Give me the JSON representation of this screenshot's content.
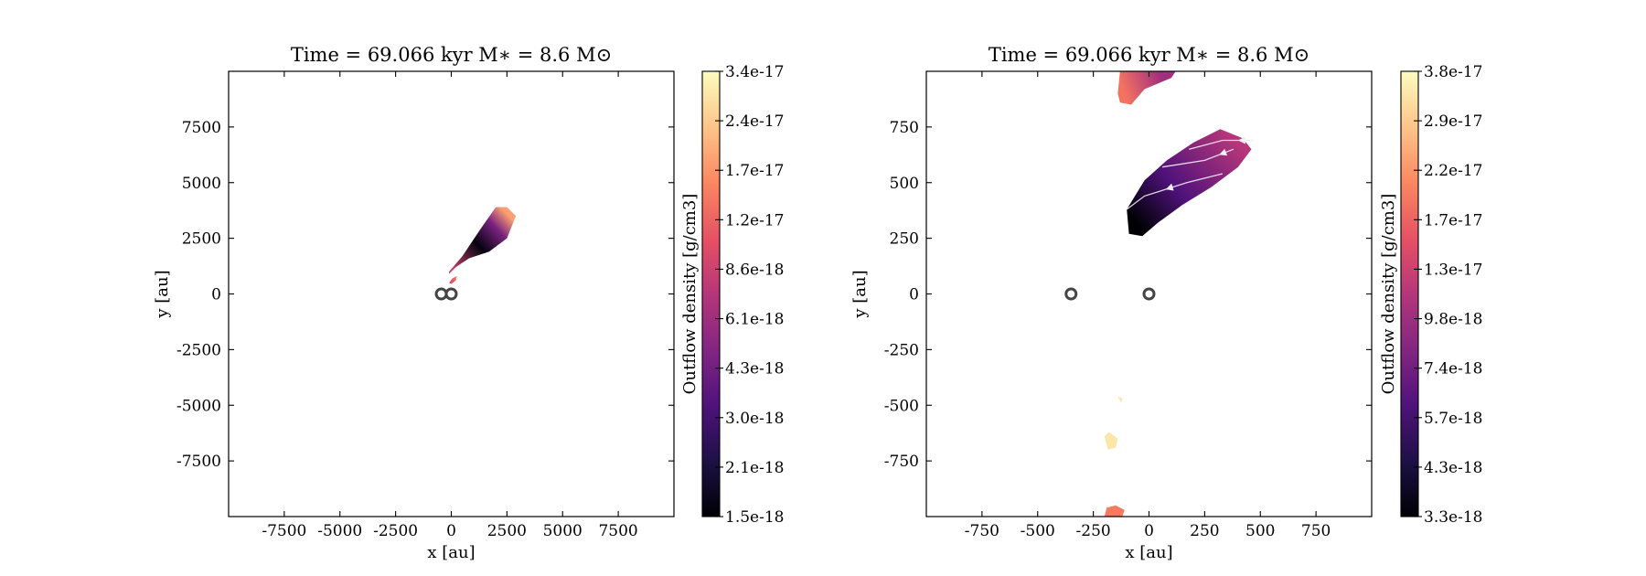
{
  "chart_data": [
    {
      "type": "heatmap",
      "title": "Time = 69.066 kyr    M∗ = 8.6 M⊙",
      "xlabel": "x [au]",
      "ylabel": "y [au]",
      "xlim": [
        -10000,
        10000
      ],
      "ylim": [
        -10000,
        10000
      ],
      "xticks": [
        -7500,
        -5000,
        -2500,
        0,
        2500,
        5000,
        7500
      ],
      "yticks": [
        7500,
        5000,
        2500,
        0,
        -2500,
        -5000,
        -7500
      ],
      "xtick_labels": [
        "-7500",
        "-5000",
        "-2500",
        "0",
        "2500",
        "5000",
        "7500"
      ],
      "ytick_labels": [
        "7500",
        "5000",
        "2500",
        "0",
        "-2500",
        "-5000",
        "-7500"
      ],
      "colorbar": {
        "label": "Outflow density [g/cm3]",
        "ticks": [
          "1.5e-18",
          "2.1e-18",
          "3.0e-18",
          "4.3e-18",
          "6.1e-18",
          "8.6e-18",
          "1.2e-17",
          "1.7e-17",
          "2.4e-17",
          "3.4e-17"
        ]
      },
      "sinks": [
        {
          "x": -450,
          "y": 0
        },
        {
          "x": 0,
          "y": 0
        }
      ],
      "regions": [
        {
          "name": "main-outflow-lobe",
          "outline": [
            [
              -100,
              1000
            ],
            [
              500,
              1700
            ],
            [
              1300,
              2900
            ],
            [
              2000,
              3900
            ],
            [
              2500,
              3900
            ],
            [
              2900,
              3500
            ],
            [
              2500,
              2500
            ],
            [
              1700,
              1900
            ],
            [
              800,
              1600
            ],
            [
              200,
              1200
            ],
            [
              -100,
              900
            ]
          ],
          "fill_stops": [
            {
              "x": 0,
              "y": 1100,
              "level": 0.55
            },
            {
              "x": 1200,
              "y": 2200,
              "level": 0.02
            },
            {
              "x": 1800,
              "y": 3200,
              "level": 0.35
            },
            {
              "x": 2600,
              "y": 3500,
              "level": 0.8
            }
          ]
        },
        {
          "name": "small-jet-knot",
          "outline": [
            [
              -100,
              500
            ],
            [
              50,
              700
            ],
            [
              250,
              800
            ],
            [
              200,
              600
            ],
            [
              0,
              450
            ]
          ],
          "fill_stops": [
            {
              "x": 0,
              "y": 500,
              "level": 0.6
            },
            {
              "x": 200,
              "y": 750,
              "level": 0.7
            }
          ]
        }
      ],
      "streamlines": []
    },
    {
      "type": "heatmap",
      "title": "Time = 69.066 kyr    M∗ = 8.6 M⊙",
      "xlabel": "x [au]",
      "ylabel": "y [au]",
      "xlim": [
        -1000,
        1000
      ],
      "ylim": [
        -1000,
        1000
      ],
      "xticks": [
        -750,
        -500,
        -250,
        0,
        250,
        500,
        750
      ],
      "yticks": [
        750,
        500,
        250,
        0,
        -250,
        -500,
        -750
      ],
      "xtick_labels": [
        "-750",
        "-500",
        "-250",
        "0",
        "250",
        "500",
        "750"
      ],
      "ytick_labels": [
        "750",
        "500",
        "250",
        "0",
        "-250",
        "-500",
        "-750"
      ],
      "colorbar": {
        "label": "Outflow density [g/cm3]",
        "ticks": [
          "3.3e-18",
          "4.3e-18",
          "5.7e-18",
          "7.4e-18",
          "9.8e-18",
          "1.3e-17",
          "1.7e-17",
          "2.2e-17",
          "2.9e-17",
          "3.8e-17"
        ]
      },
      "sinks": [
        {
          "x": -350,
          "y": 0
        },
        {
          "x": 0,
          "y": 0
        }
      ],
      "regions": [
        {
          "name": "upper-outflow-lobe",
          "outline": [
            [
              -90,
              270
            ],
            [
              -100,
              380
            ],
            [
              -20,
              510
            ],
            [
              80,
              600
            ],
            [
              200,
              680
            ],
            [
              320,
              740
            ],
            [
              420,
              700
            ],
            [
              460,
              650
            ],
            [
              400,
              570
            ],
            [
              280,
              480
            ],
            [
              150,
              400
            ],
            [
              40,
              320
            ],
            [
              -30,
              260
            ]
          ],
          "fill_stops": [
            {
              "x": -50,
              "y": 310,
              "level": 0.0
            },
            {
              "x": 100,
              "y": 500,
              "level": 0.25
            },
            {
              "x": 380,
              "y": 690,
              "level": 0.5
            }
          ]
        },
        {
          "name": "top-edge-blob",
          "outline": [
            [
              -140,
              900
            ],
            [
              -130,
              1000
            ],
            [
              120,
              1000
            ],
            [
              100,
              970
            ],
            [
              -20,
              920
            ],
            [
              -80,
              850
            ],
            [
              -130,
              860
            ]
          ],
          "fill_stops": [
            {
              "x": -120,
              "y": 930,
              "level": 0.7
            },
            {
              "x": 50,
              "y": 990,
              "level": 0.45
            }
          ]
        },
        {
          "name": "faint-speck",
          "outline": [
            [
              -140,
              -460
            ],
            [
              -120,
              -470
            ],
            [
              -125,
              -490
            ]
          ],
          "fill_stops": [
            {
              "x": -128,
              "y": -475,
              "level": 0.95
            }
          ]
        },
        {
          "name": "lower-faint-blob",
          "outline": [
            [
              -200,
              -640
            ],
            [
              -180,
              -620
            ],
            [
              -140,
              -650
            ],
            [
              -150,
              -690
            ],
            [
              -185,
              -700
            ]
          ],
          "fill_stops": [
            {
              "x": -170,
              "y": -660,
              "level": 0.95
            }
          ]
        },
        {
          "name": "bottom-edge-blob",
          "outline": [
            [
              -200,
              -1000
            ],
            [
              -190,
              -960
            ],
            [
              -150,
              -950
            ],
            [
              -110,
              -970
            ],
            [
              -120,
              -1000
            ]
          ],
          "fill_stops": [
            {
              "x": -160,
              "y": -980,
              "level": 0.72
            }
          ]
        }
      ],
      "streamlines": [
        {
          "points": [
            [
              470,
              690
            ],
            [
              330,
              690
            ],
            [
              180,
              650
            ]
          ],
          "arrow_at": 1
        },
        {
          "points": [
            [
              380,
              650
            ],
            [
              250,
              600
            ],
            [
              60,
              570
            ]
          ],
          "arrow_at": 1
        },
        {
          "points": [
            [
              330,
              540
            ],
            [
              170,
              500
            ],
            [
              -20,
              440
            ],
            [
              -100,
              380
            ]
          ],
          "arrow_at": 2
        }
      ]
    }
  ]
}
